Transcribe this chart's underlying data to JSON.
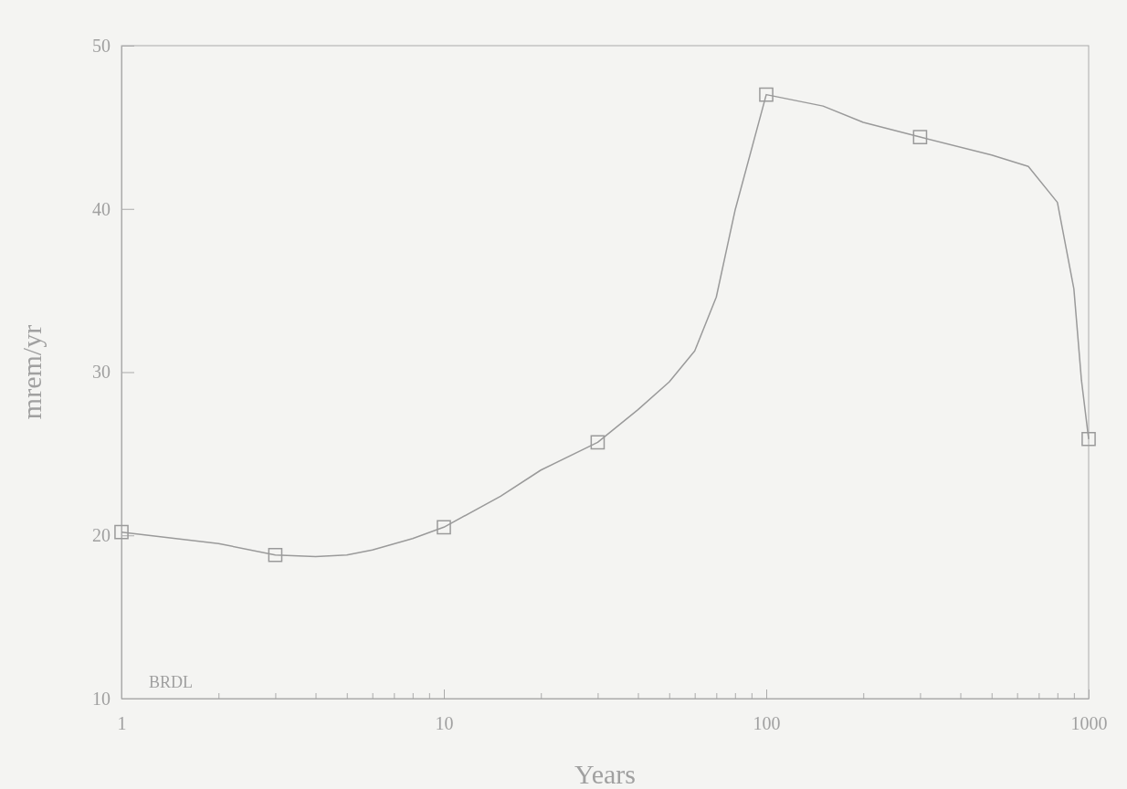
{
  "chart_data": {
    "type": "line",
    "xlabel": "Years",
    "ylabel": "mrem/yr",
    "log": "x",
    "xlim": [
      1,
      1000
    ],
    "ylim": [
      10,
      50
    ],
    "xticks": [
      1,
      {
        "value": 2,
        "label": null
      },
      {
        "value": 3,
        "label": null
      },
      {
        "value": 4,
        "label": null
      },
      {
        "value": 5,
        "label": null
      },
      {
        "value": 6,
        "label": null
      },
      {
        "value": 7,
        "label": null
      },
      {
        "value": 8,
        "label": null
      },
      {
        "value": 9,
        "label": null
      },
      10,
      {
        "value": 20,
        "label": null
      },
      {
        "value": 30,
        "label": null
      },
      {
        "value": 40,
        "label": null
      },
      {
        "value": 50,
        "label": null
      },
      {
        "value": 60,
        "label": null
      },
      {
        "value": 70,
        "label": null
      },
      {
        "value": 80,
        "label": null
      },
      {
        "value": 90,
        "label": null
      },
      100,
      {
        "value": 200,
        "label": null
      },
      {
        "value": 300,
        "label": null
      },
      {
        "value": 400,
        "label": null
      },
      {
        "value": 500,
        "label": null
      },
      {
        "value": 600,
        "label": null
      },
      {
        "value": 700,
        "label": null
      },
      {
        "value": 800,
        "label": null
      },
      {
        "value": 900,
        "label": null
      },
      1000
    ],
    "yticks": [
      10,
      20,
      30,
      40,
      50
    ],
    "grid": false,
    "annotations": [
      "BRDL"
    ],
    "series": [
      {
        "color": "#9a9a9a",
        "marker": "none",
        "line_style": "solid",
        "x": [
          1,
          2,
          3,
          4,
          5,
          6,
          8,
          10,
          15,
          20,
          30,
          40,
          50,
          60,
          70,
          80,
          100,
          150,
          200,
          300,
          500,
          650,
          800,
          900,
          950,
          1000
        ],
        "values": [
          20.2,
          19.5,
          18.8,
          18.7,
          18.8,
          19.1,
          19.8,
          20.5,
          22.4,
          24.0,
          25.7,
          27.7,
          29.4,
          31.3,
          34.6,
          39.9,
          47.0,
          46.3,
          45.3,
          44.4,
          43.3,
          42.6,
          40.4,
          35.1,
          29.5,
          25.9
        ]
      },
      {
        "type": "scatter",
        "color": "#9a9a9a",
        "marker": "square",
        "x": [
          1,
          3,
          10,
          30,
          100,
          300,
          1000
        ],
        "values": [
          20.2,
          18.8,
          20.5,
          25.7,
          47.0,
          44.4,
          25.9
        ]
      }
    ]
  }
}
